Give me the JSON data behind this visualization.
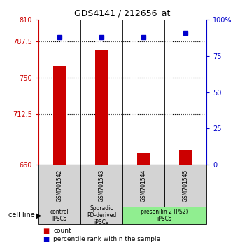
{
  "title": "GDS4141 / 212656_at",
  "samples": [
    "GSM701542",
    "GSM701543",
    "GSM701544",
    "GSM701545"
  ],
  "counts": [
    762,
    779,
    672,
    675
  ],
  "percentile_ranks": [
    88,
    88,
    88,
    91
  ],
  "ylim_left": [
    660,
    810
  ],
  "ylim_right": [
    0,
    100
  ],
  "yticks_left": [
    660,
    712.5,
    750,
    787.5,
    810
  ],
  "yticks_left_labels": [
    "660",
    "712.5",
    "750",
    "787.5",
    "810"
  ],
  "yticks_right": [
    0,
    25,
    50,
    75,
    100
  ],
  "yticks_right_labels": [
    "0",
    "25",
    "50",
    "75",
    "100%"
  ],
  "bar_color": "#cc0000",
  "dot_color": "#0000cc",
  "bar_width": 0.3,
  "cell_line_groups": [
    {
      "label": "control\nIPSCs",
      "start": 0,
      "end": 1,
      "color": "#d3d3d3"
    },
    {
      "label": "Sporadic\nPD-derived\niPSCs",
      "start": 1,
      "end": 2,
      "color": "#d3d3d3"
    },
    {
      "label": "presenilin 2 (PS2)\niPSCs",
      "start": 2,
      "end": 4,
      "color": "#90ee90"
    }
  ],
  "legend_count_color": "#cc0000",
  "legend_pct_color": "#0000cc"
}
